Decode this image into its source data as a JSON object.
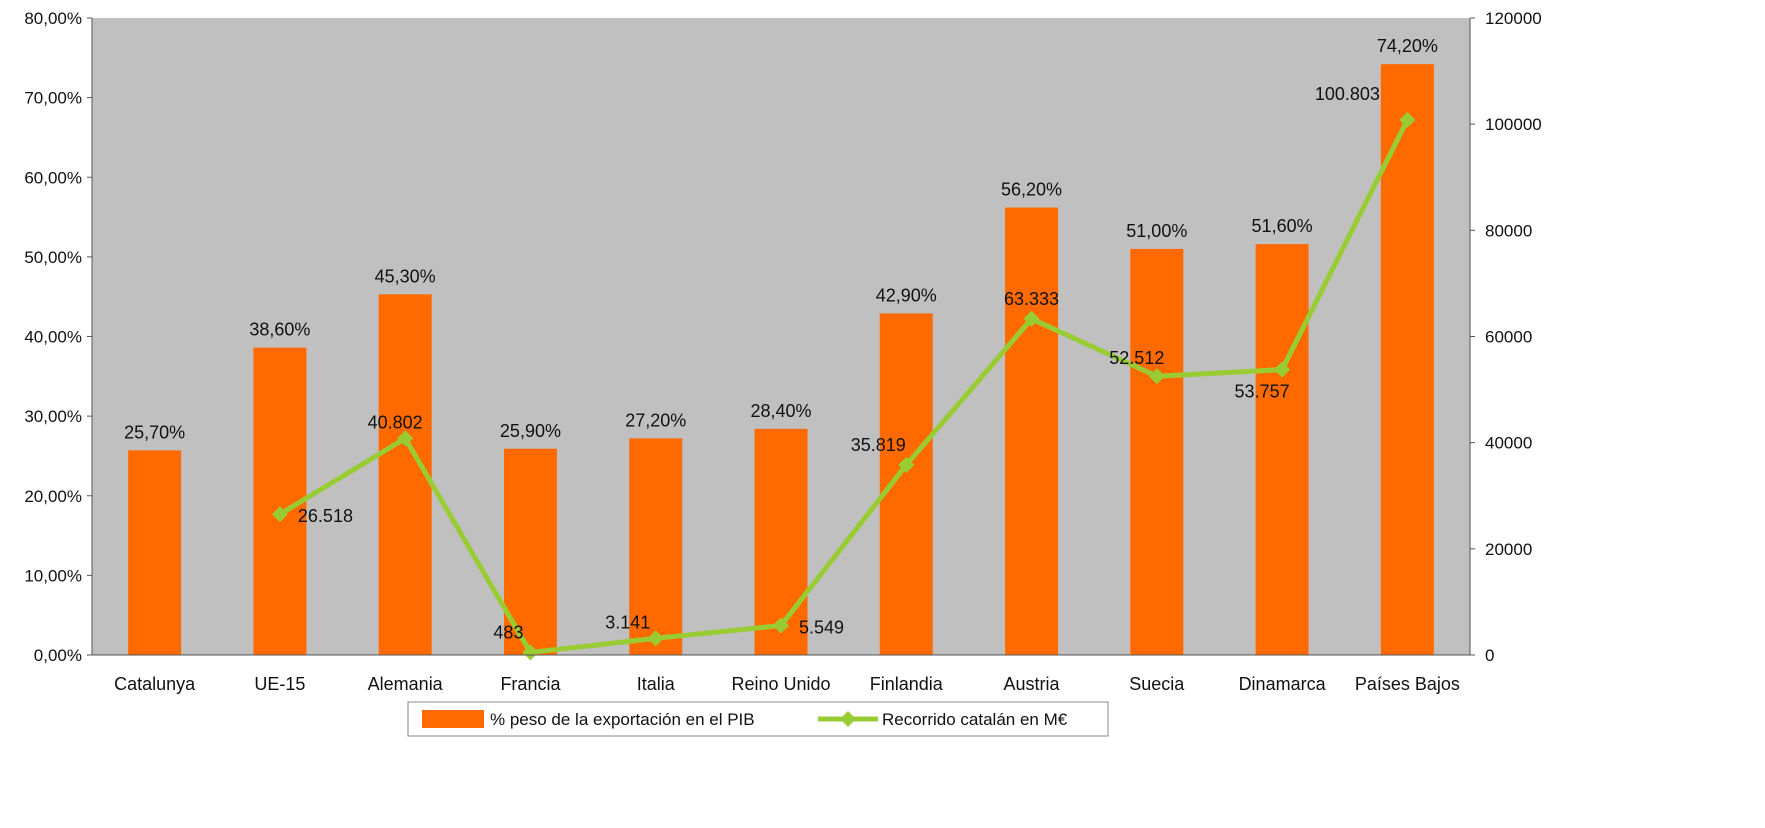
{
  "chart_data": {
    "type": "bar",
    "categories": [
      "Catalunya",
      "UE-15",
      "Alemania",
      "Francia",
      "Italia",
      "Reino Unido",
      "Finlandia",
      "Austria",
      "Suecia",
      "Dinamarca",
      "Países Bajos"
    ],
    "series": [
      {
        "name": "% peso de la exportación en el PIB",
        "type": "bar",
        "axis": "left",
        "color": "#ff6a00",
        "values": [
          25.7,
          38.6,
          45.3,
          25.9,
          27.2,
          28.4,
          42.9,
          56.2,
          51.0,
          51.6,
          74.2
        ],
        "labels": [
          "25,70%",
          "38,60%",
          "45,30%",
          "25,90%",
          "27,20%",
          "28,40%",
          "42,90%",
          "56,20%",
          "51,00%",
          "51,60%",
          "74,20%"
        ]
      },
      {
        "name": "Recorrido catalán en M€",
        "type": "line",
        "axis": "right",
        "color": "#99cc33",
        "values": [
          null,
          26518,
          40802,
          483,
          3141,
          5549,
          35819,
          63333,
          52512,
          53757,
          100803
        ],
        "labels": [
          null,
          "26.518",
          "40.802",
          "483",
          "3.141",
          "5.549",
          "35.819",
          "63.333",
          "52.512",
          "53.757",
          "100.803"
        ]
      }
    ],
    "y_left": {
      "range": [
        0,
        80
      ],
      "ticks": [
        0,
        10,
        20,
        30,
        40,
        50,
        60,
        70,
        80
      ],
      "tick_labels": [
        "0,00%",
        "10,00%",
        "20,00%",
        "30,00%",
        "40,00%",
        "50,00%",
        "60,00%",
        "70,00%",
        "80,00%"
      ]
    },
    "y_right": {
      "range": [
        0,
        120000
      ],
      "ticks": [
        0,
        20000,
        40000,
        60000,
        80000,
        100000,
        120000
      ],
      "tick_labels": [
        "0",
        "20000",
        "40000",
        "60000",
        "80000",
        "100000",
        "120000"
      ]
    },
    "plot_background": "#c0c0c0",
    "grid": false,
    "legend_position": "bottom"
  }
}
